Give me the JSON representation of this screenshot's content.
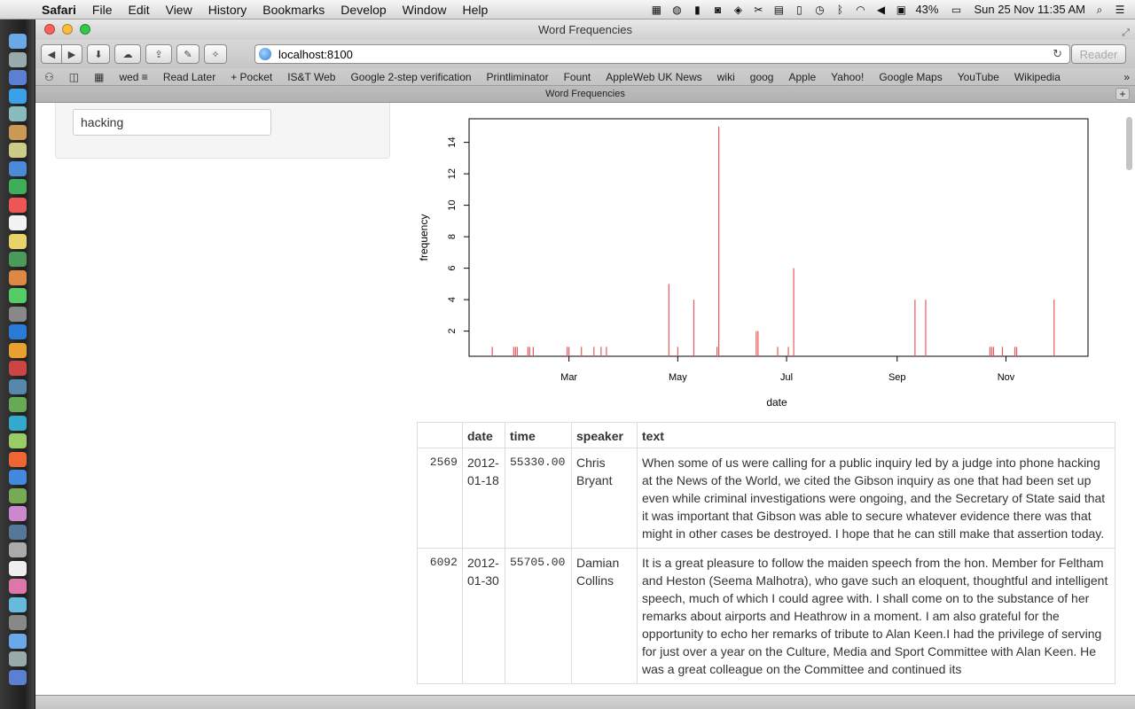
{
  "menubar": {
    "apple": "",
    "menus": [
      "Safari",
      "File",
      "Edit",
      "View",
      "History",
      "Bookmarks",
      "Develop",
      "Window",
      "Help"
    ],
    "battery": "43%",
    "clock": "Sun 25 Nov  11:35 AM",
    "search_icon": "⌕",
    "list_icon": "☰"
  },
  "window": {
    "title": "Word Frequencies",
    "address": "localhost:8100",
    "reader_label": "Reader",
    "tab_title": "Word Frequencies"
  },
  "bookmarks": [
    "wed ≡",
    "Read Later",
    "+ Pocket",
    "IS&T Web",
    "Google 2-step verification",
    "Printliminator",
    "Fount",
    "AppleWeb UK News",
    "wiki",
    "goog",
    "Apple",
    "Yahoo!",
    "Google Maps",
    "YouTube",
    "Wikipedia"
  ],
  "search": {
    "value": "hacking"
  },
  "chart_data": {
    "type": "bar",
    "xlabel": "date",
    "ylabel": "frequency",
    "x_ticks": [
      "Mar",
      "May",
      "Jul",
      "Sep",
      "Nov"
    ],
    "y_ticks": [
      2,
      4,
      6,
      8,
      10,
      12,
      14
    ],
    "ylim": [
      0.4,
      15.5
    ],
    "xlim": [
      "2012-01-05",
      "2012-12-17"
    ],
    "color": "#e8595d",
    "points": [
      {
        "date": "2012-01-18",
        "value": 1
      },
      {
        "date": "2012-01-30",
        "value": 1
      },
      {
        "date": "2012-01-31",
        "value": 1
      },
      {
        "date": "2012-02-01",
        "value": 1
      },
      {
        "date": "2012-02-07",
        "value": 1
      },
      {
        "date": "2012-02-08",
        "value": 1
      },
      {
        "date": "2012-02-10",
        "value": 1
      },
      {
        "date": "2012-02-29",
        "value": 1
      },
      {
        "date": "2012-03-01",
        "value": 1
      },
      {
        "date": "2012-03-08",
        "value": 1
      },
      {
        "date": "2012-03-15",
        "value": 1
      },
      {
        "date": "2012-03-19",
        "value": 1
      },
      {
        "date": "2012-03-22",
        "value": 1
      },
      {
        "date": "2012-04-26",
        "value": 5
      },
      {
        "date": "2012-05-01",
        "value": 1
      },
      {
        "date": "2012-05-10",
        "value": 4
      },
      {
        "date": "2012-05-23",
        "value": 1
      },
      {
        "date": "2012-05-24",
        "value": 15
      },
      {
        "date": "2012-06-14",
        "value": 2
      },
      {
        "date": "2012-06-15",
        "value": 2
      },
      {
        "date": "2012-06-26",
        "value": 1
      },
      {
        "date": "2012-07-02",
        "value": 1
      },
      {
        "date": "2012-07-05",
        "value": 6
      },
      {
        "date": "2012-09-11",
        "value": 4
      },
      {
        "date": "2012-09-17",
        "value": 4
      },
      {
        "date": "2012-10-23",
        "value": 1
      },
      {
        "date": "2012-10-24",
        "value": 1
      },
      {
        "date": "2012-10-25",
        "value": 1
      },
      {
        "date": "2012-10-30",
        "value": 1
      },
      {
        "date": "2012-11-06",
        "value": 1
      },
      {
        "date": "2012-11-07",
        "value": 1
      },
      {
        "date": "2012-11-28",
        "value": 4
      }
    ]
  },
  "table": {
    "headers": [
      "",
      "date",
      "time",
      "speaker",
      "text"
    ],
    "rows": [
      {
        "id": "2569",
        "date": "2012-01-18",
        "time": "55330.00",
        "speaker": "Chris Bryant",
        "text": "When some of us were calling for a public inquiry led by a judge into phone hacking at the News of the World, we cited the Gibson inquiry as one that had been set up even while criminal investigations were ongoing, and the Secretary of State said that it was important that Gibson was able to secure whatever evidence there was that might in other cases be destroyed. I hope that he can still make that assertion today."
      },
      {
        "id": "6092",
        "date": "2012-01-30",
        "time": "55705.00",
        "speaker": "Damian Collins",
        "text": "It is a great pleasure to follow the maiden speech from the hon. Member for Feltham and Heston (Seema Malhotra), who gave such an eloquent, thoughtful and intelligent speech, much of which I could agree with. I shall come on to the substance of her remarks about airports and Heathrow in a moment. I am also grateful for the opportunity to echo her remarks of tribute to Alan Keen.I had the privilege of serving for just over a year on the Culture, Media and Sport Committee with Alan Keen. He was a great colleague on the Committee and continued its"
      }
    ]
  }
}
